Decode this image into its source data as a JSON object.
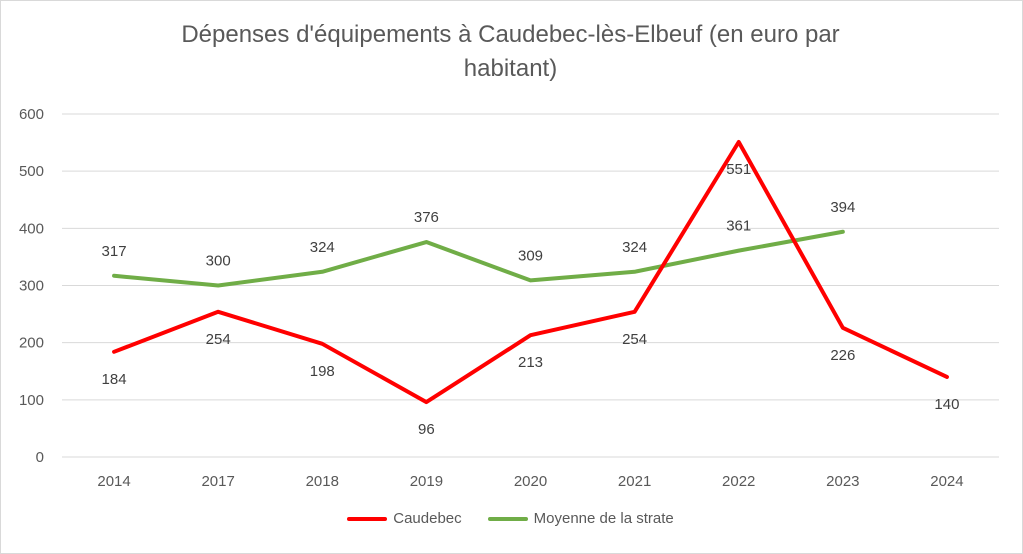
{
  "chart_data": {
    "type": "line",
    "title_line1": "Dépenses d'équipements à Caudebec-lès-Elbeuf (en euro par",
    "title_line2": "habitant)",
    "categories": [
      "2014",
      "2017",
      "2018",
      "2019",
      "2020",
      "2021",
      "2022",
      "2023",
      "2024"
    ],
    "ylim": [
      0,
      600
    ],
    "yticks": [
      0,
      100,
      200,
      300,
      400,
      500,
      600
    ],
    "grid": true,
    "legend_position": "bottom",
    "series": [
      {
        "name": "Caudebec",
        "color": "#ff0000",
        "values": [
          184,
          254,
          198,
          96,
          213,
          254,
          551,
          226,
          140
        ]
      },
      {
        "name": "Moyenne de la strate",
        "color": "#70ad47",
        "values": [
          317,
          300,
          324,
          376,
          309,
          324,
          361,
          394,
          null
        ]
      }
    ]
  }
}
